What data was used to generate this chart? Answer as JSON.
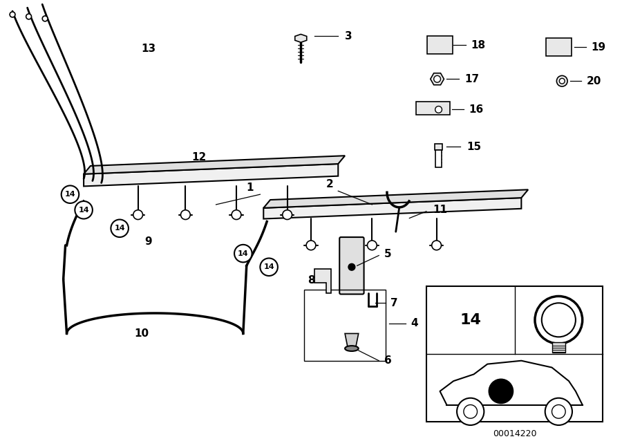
{
  "bg": "#ffffff",
  "lc": "#000000",
  "fig_w": 9.0,
  "fig_h": 6.35,
  "dpi": 100,
  "inset_code": "00014220"
}
